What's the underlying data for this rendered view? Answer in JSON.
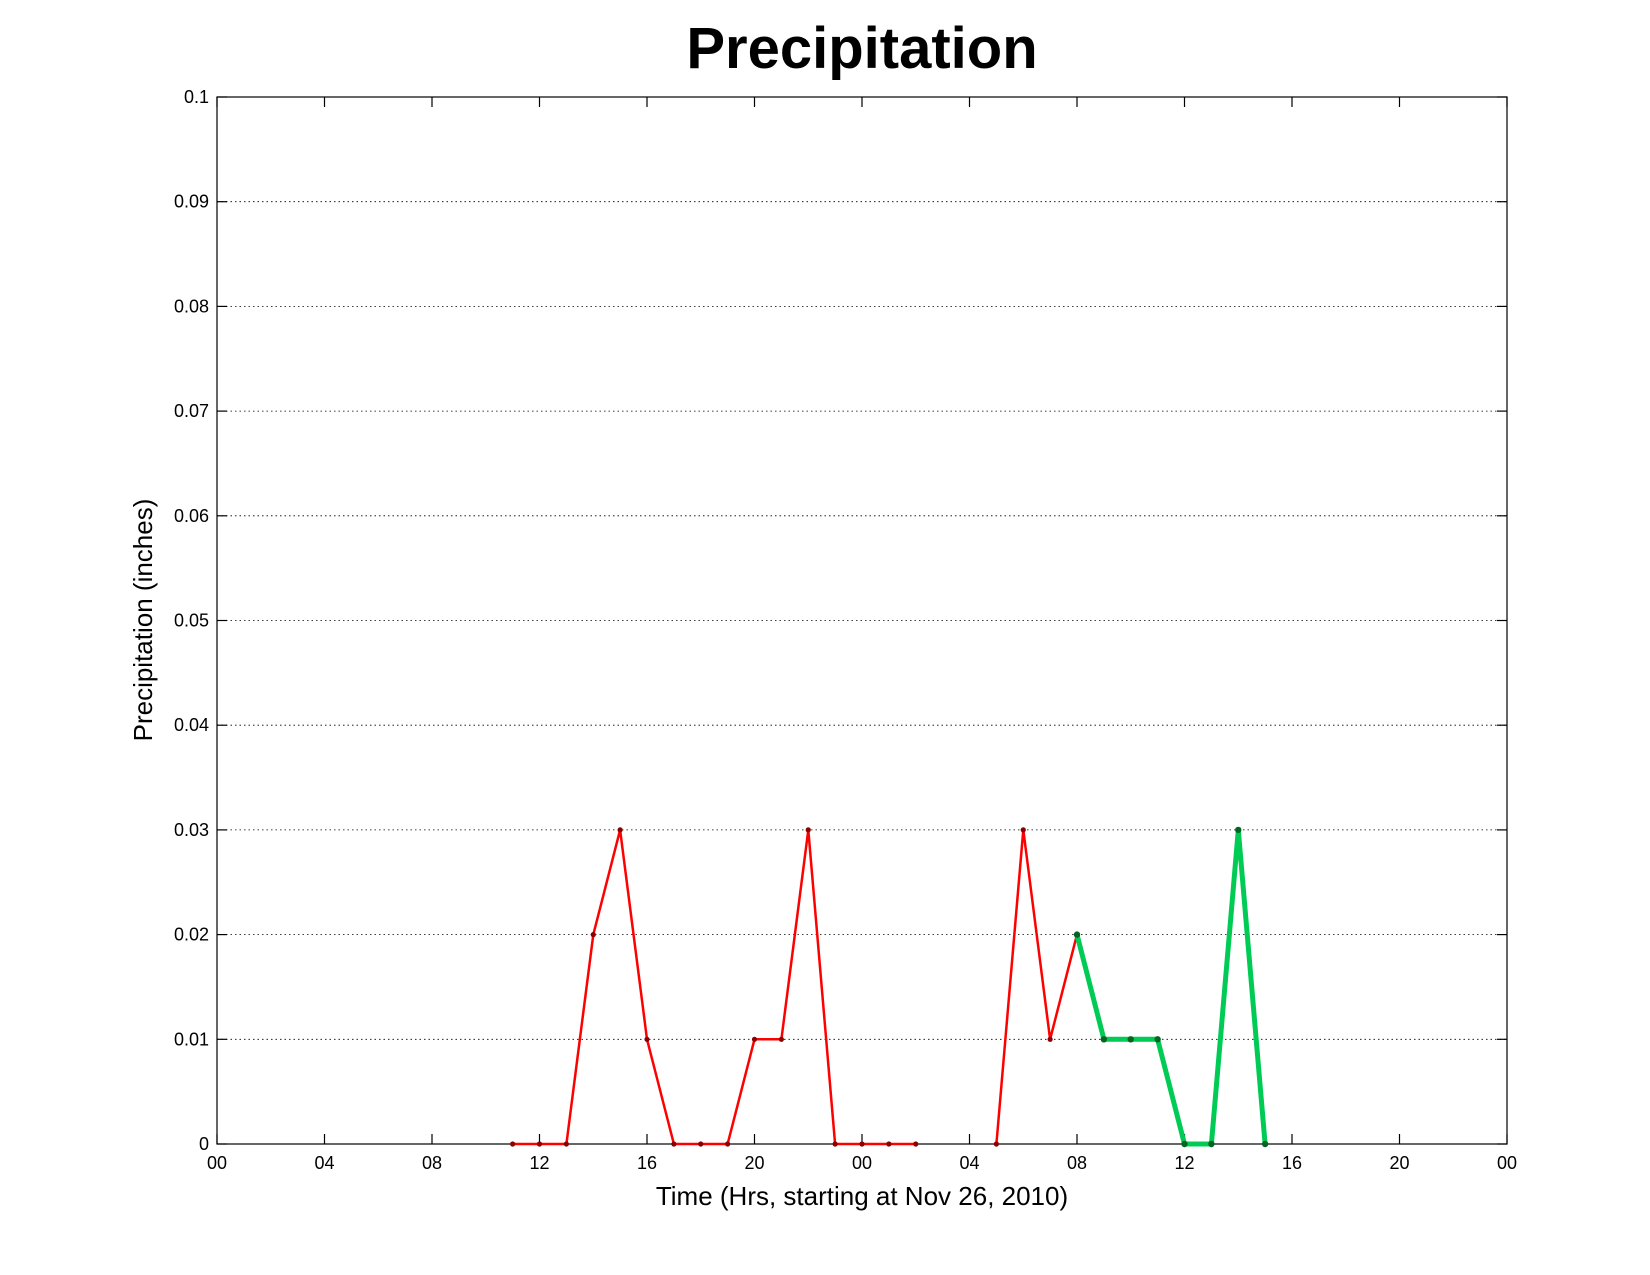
{
  "chart_data": {
    "type": "line",
    "title": "Precipitation",
    "xlabel": "Time (Hrs, starting at Nov 26, 2010)",
    "ylabel": "Precipitation (inches)",
    "xlim": [
      0,
      48
    ],
    "ylim": [
      0,
      0.1
    ],
    "grid": "horizontal dotted",
    "x_tick_values": [
      0,
      4,
      8,
      12,
      16,
      20,
      24,
      28,
      32,
      36,
      40,
      44,
      48
    ],
    "x_tick_labels": [
      "00",
      "04",
      "08",
      "12",
      "16",
      "20",
      "00",
      "04",
      "08",
      "12",
      "16",
      "20",
      "00"
    ],
    "y_tick_values": [
      0,
      0.01,
      0.02,
      0.03,
      0.04,
      0.05,
      0.06,
      0.07,
      0.08,
      0.09,
      0.1
    ],
    "y_tick_labels": [
      "0",
      "0.01",
      "0.02",
      "0.03",
      "0.04",
      "0.05",
      "0.06",
      "0.07",
      "0.08",
      "0.09",
      "0.1"
    ],
    "series": [
      {
        "color": "#ff0000",
        "marker_color": "#8b0000",
        "style": "thin",
        "segments": [
          [
            [
              11,
              0
            ],
            [
              12,
              0
            ],
            [
              13,
              0
            ],
            [
              14,
              0.02
            ],
            [
              15,
              0.03
            ],
            [
              16,
              0.01
            ],
            [
              17,
              0
            ],
            [
              18,
              0
            ],
            [
              19,
              0
            ],
            [
              20,
              0.01
            ],
            [
              21,
              0.01
            ],
            [
              22,
              0.03
            ],
            [
              23,
              0
            ],
            [
              24,
              0
            ],
            [
              25,
              0
            ],
            [
              26,
              0
            ]
          ],
          [
            [
              29,
              0
            ],
            [
              30,
              0.03
            ],
            [
              31,
              0.01
            ],
            [
              32,
              0.02
            ]
          ]
        ]
      },
      {
        "color": "#00cc55",
        "marker_color": "#006622",
        "style": "thick",
        "segments": [
          [
            [
              32,
              0.02
            ],
            [
              33,
              0.01
            ],
            [
              34,
              0.01
            ],
            [
              35,
              0.01
            ],
            [
              36,
              0
            ],
            [
              37,
              0
            ],
            [
              38,
              0.03
            ],
            [
              39,
              0
            ]
          ]
        ]
      }
    ]
  }
}
